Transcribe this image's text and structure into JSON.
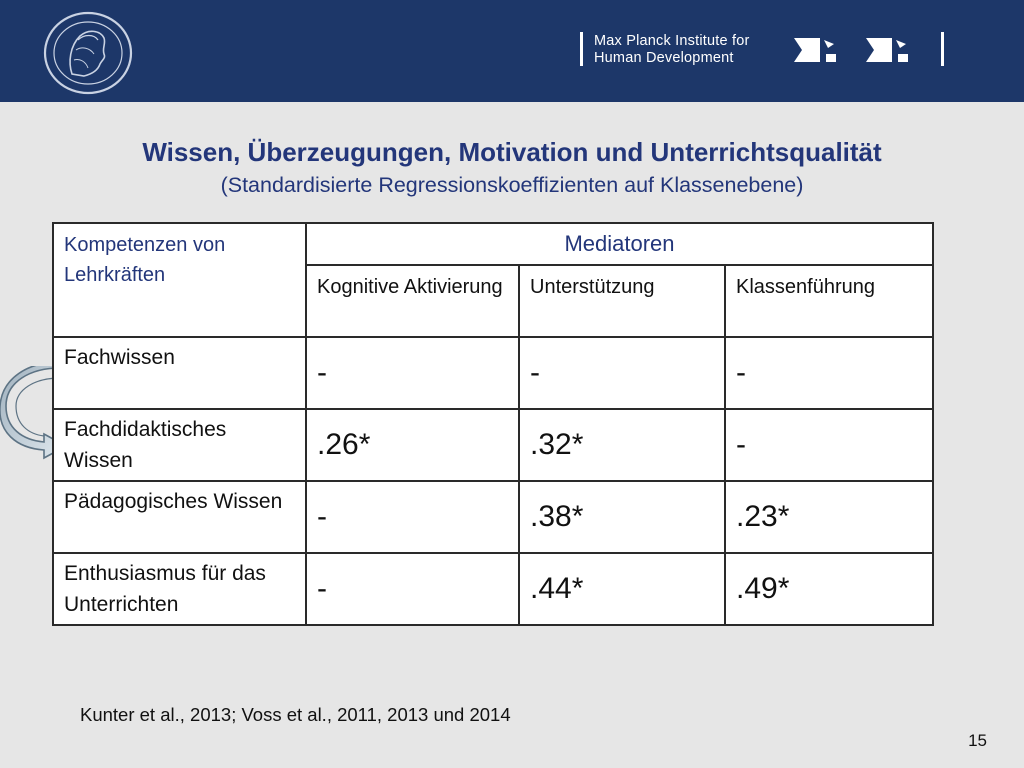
{
  "header": {
    "institute_line1": "Max Planck Institute for",
    "institute_line2": "Human Development",
    "brand_color": "#1d3769"
  },
  "slide": {
    "title": "Wissen, Überzeugungen, Motivation und Unterrichtsqualität",
    "subtitle": "(Standardisierte Regressionskoeffizienten auf Klassenebene)"
  },
  "table": {
    "header_competencies": "Kompetenzen von Lehrkräften",
    "header_mediators": "Mediatoren",
    "columns": [
      "Kognitive Aktivierung",
      "Unterstützung",
      "Klassenführung"
    ],
    "rows": [
      {
        "label": "Fachwissen",
        "values": [
          "-",
          "-",
          "-"
        ]
      },
      {
        "label": "Fachdidaktisches Wissen",
        "values": [
          ".26*",
          ".32*",
          "-"
        ]
      },
      {
        "label": "Pädagogisches Wissen",
        "values": [
          "-",
          ".38*",
          ".23*"
        ]
      },
      {
        "label": "Enthusiasmus für das Unterrichten",
        "values": [
          "-",
          ".44*",
          ".49*"
        ]
      }
    ]
  },
  "footer": {
    "citation": "Kunter et al., 2013; Voss et al., 2011, 2013 und 2014",
    "page_number": "15"
  },
  "icons": {
    "seal": "minerva-seal-icon",
    "logo": "mpi-logo-icon",
    "arrow": "curved-arrow-icon"
  }
}
